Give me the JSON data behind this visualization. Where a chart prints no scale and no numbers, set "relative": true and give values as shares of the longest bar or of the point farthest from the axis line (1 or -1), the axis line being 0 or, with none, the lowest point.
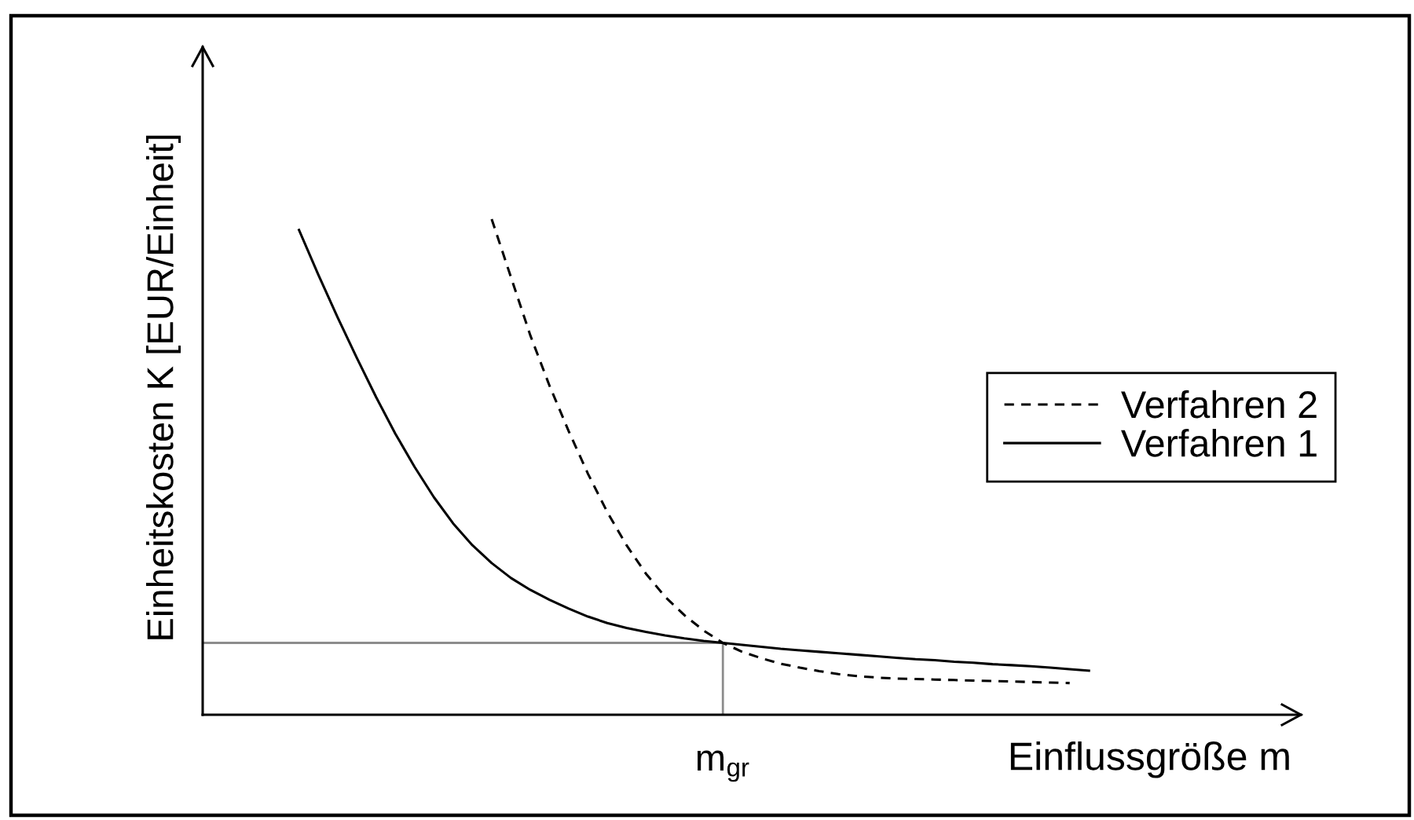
{
  "chart_data": {
    "type": "line",
    "relative": true,
    "xlabel": "Einflussgröße m",
    "ylabel": "Einheitskosten K [EUR/Einheit]",
    "categories": [
      null,
      null,
      null,
      null,
      null,
      null,
      null,
      null,
      null,
      null,
      null,
      null,
      null,
      null,
      null,
      null,
      null,
      null,
      null,
      null,
      null,
      null,
      null,
      null,
      null,
      null,
      null,
      null,
      null,
      null,
      null,
      null,
      null,
      null,
      null,
      null,
      null,
      null,
      null,
      null,
      null,
      null,
      null,
      null,
      null,
      null,
      null,
      null,
      null,
      null,
      null,
      null,
      null,
      null,
      null,
      null
    ],
    "series": [
      {
        "name": "Verfahren 2",
        "color": "#000000",
        "line_style": "dashed",
        "values": [
          null,
          null,
          null,
          null,
          null,
          null,
          null,
          null,
          null,
          null,
          null,
          null,
          null,
          null,
          1.0,
          0.883,
          0.766,
          0.664,
          0.572,
          0.486,
          0.409,
          0.342,
          0.285,
          0.238,
          0.201,
          0.17,
          0.145,
          0.127,
          0.114,
          0.103,
          0.095,
          0.088,
          0.082,
          0.078,
          0.075,
          0.073,
          0.072,
          0.071,
          0.07,
          0.069,
          0.068,
          0.067,
          0.066,
          0.065,
          0.064,
          null,
          null,
          null,
          null,
          null,
          null,
          null,
          null,
          null,
          null,
          null
        ]
      },
      {
        "name": "Verfahren 1",
        "color": "#000000",
        "line_style": "solid",
        "values": [
          null,
          null,
          null,
          null,
          0.978,
          0.888,
          0.802,
          0.72,
          0.641,
          0.567,
          0.5,
          0.439,
          0.386,
          0.342,
          0.306,
          0.276,
          0.252,
          0.232,
          0.214,
          0.198,
          0.185,
          0.175,
          0.167,
          0.16,
          0.154,
          0.149,
          0.145,
          0.141,
          0.137,
          0.133,
          0.13,
          0.127,
          0.124,
          0.121,
          0.118,
          0.115,
          0.112,
          0.11,
          0.107,
          0.105,
          0.102,
          0.1,
          0.098,
          0.095,
          0.092,
          0.089,
          null,
          null,
          null,
          null,
          null,
          null,
          null,
          null,
          null,
          null
        ]
      }
    ],
    "ref_lines": [
      {
        "axis": "y",
        "value": 0.145,
        "color": "#8c8c8c"
      }
    ],
    "annotations": [
      "m$_{gr}$"
    ],
    "legend": "right"
  }
}
